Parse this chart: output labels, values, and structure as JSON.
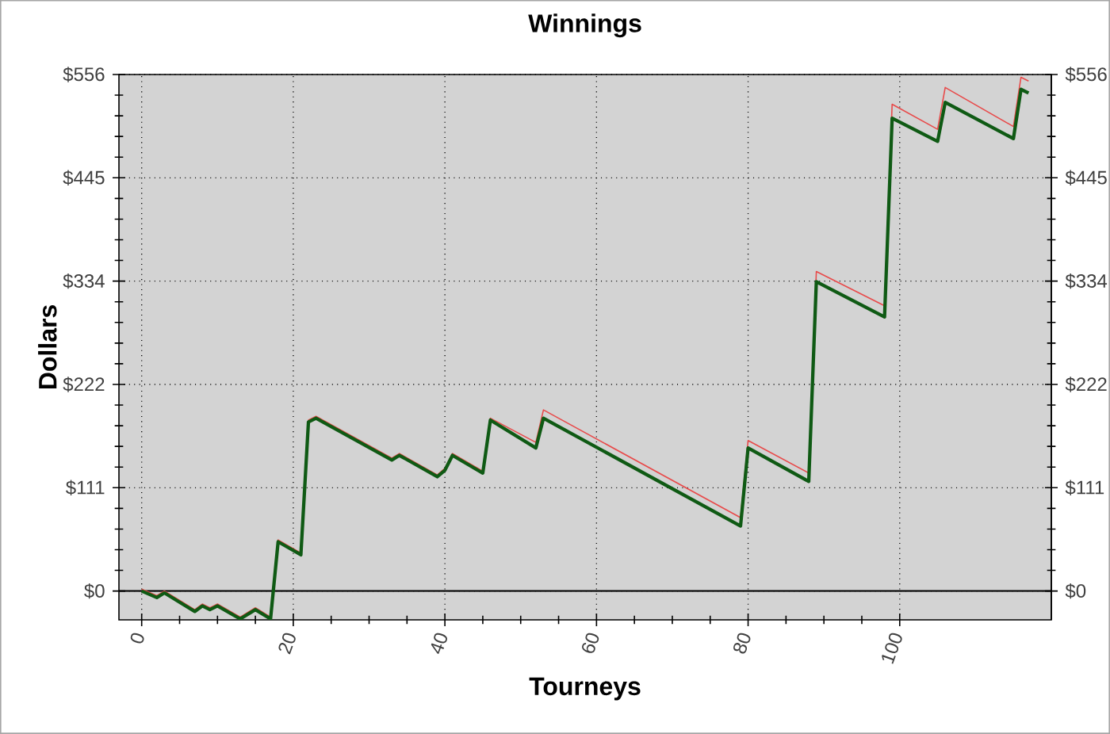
{
  "chart_data": {
    "type": "line",
    "title": "Winnings",
    "xlabel": "Tourneys",
    "ylabel": "Dollars",
    "xlim": [
      -3,
      120
    ],
    "xticks": [
      0,
      20,
      40,
      60,
      80,
      100
    ],
    "ylim": [
      -31,
      556
    ],
    "yticks": [
      {
        "value": 0,
        "label": "$0"
      },
      {
        "value": 111.2,
        "label": "$111"
      },
      {
        "value": 222.4,
        "label": "$222"
      },
      {
        "value": 333.6,
        "label": "$334"
      },
      {
        "value": 444.8,
        "label": "$445"
      },
      {
        "value": 556,
        "label": "$556"
      }
    ],
    "y2lim": [
      -31,
      556
    ],
    "y2ticks": [
      {
        "value": 0,
        "label": "$0"
      },
      {
        "value": 111.2,
        "label": "$111"
      },
      {
        "value": 222.4,
        "label": "$222"
      },
      {
        "value": 333.6,
        "label": "$334"
      },
      {
        "value": 444.8,
        "label": "$445"
      },
      {
        "value": 556,
        "label": "$556"
      }
    ],
    "grid": true,
    "ref_lines": [
      {
        "axis": "y",
        "value": 0,
        "color": "#000000"
      }
    ],
    "series": [
      {
        "color": "#e84a4a",
        "x": [
          0,
          2,
          3,
          7,
          8,
          9,
          10,
          13,
          15,
          17,
          18,
          21,
          22,
          23,
          33,
          34,
          39,
          40,
          41,
          45,
          46,
          52,
          53,
          79,
          80,
          88,
          89,
          98,
          99,
          105,
          106,
          115,
          116,
          117
        ],
        "values": [
          2,
          -5,
          0,
          -20,
          -14,
          -18,
          -14,
          -28,
          -18,
          -28,
          55,
          41,
          184,
          188,
          143,
          148,
          125,
          132,
          148,
          129,
          186,
          160,
          195,
          79,
          162,
          127,
          344,
          307,
          524,
          497,
          542,
          500,
          553,
          549
        ]
      },
      {
        "color": "#0f5a14",
        "x": [
          0,
          2,
          3,
          7,
          8,
          9,
          10,
          13,
          15,
          17,
          18,
          21,
          22,
          23,
          33,
          34,
          39,
          40,
          41,
          45,
          46,
          52,
          53,
          79,
          80,
          88,
          89,
          98,
          99,
          105,
          106,
          115,
          116,
          117
        ],
        "values": [
          0,
          -7,
          -2,
          -22,
          -16,
          -20,
          -16,
          -30,
          -20,
          -30,
          53,
          39,
          182,
          186,
          141,
          146,
          123,
          130,
          146,
          127,
          184,
          154,
          186,
          70,
          154,
          118,
          333,
          295,
          509,
          484,
          526,
          487,
          540,
          536
        ]
      }
    ]
  }
}
